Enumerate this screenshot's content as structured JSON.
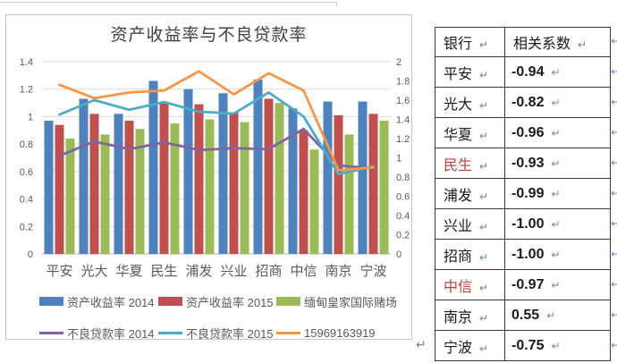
{
  "chart_data": {
    "type": "bar+line",
    "title": "资产收益率与不良贷款率",
    "categories": [
      "平安",
      "光大",
      "华夏",
      "民生",
      "浦发",
      "兴业",
      "招商",
      "中信",
      "南京",
      "宁波"
    ],
    "bar_series": [
      {
        "name": "资产收益率 2014",
        "color": "#4F81BD",
        "axis": "left",
        "values": [
          0.97,
          1.13,
          1.02,
          1.26,
          1.2,
          1.17,
          1.27,
          1.06,
          1.11,
          1.11
        ]
      },
      {
        "name": "资产收益率 2015",
        "color": "#C0504D",
        "axis": "left",
        "values": [
          0.94,
          1.02,
          0.97,
          1.1,
          1.09,
          1.03,
          1.13,
          0.9,
          1.01,
          1.02
        ]
      },
      {
        "name": "缅甸皇家国际赌场",
        "color": "#9BBB59",
        "axis": "left",
        "values": [
          0.84,
          0.87,
          0.91,
          0.95,
          0.98,
          0.96,
          1.1,
          0.76,
          0.87,
          0.97
        ]
      }
    ],
    "line_series": [
      {
        "name": "不良贷款率 2014",
        "color": "#8064A2",
        "axis": "right",
        "values": [
          1.02,
          1.17,
          1.09,
          1.16,
          1.08,
          1.1,
          1.09,
          1.3,
          0.92,
          0.89
        ]
      },
      {
        "name": "不良贷款率 2015",
        "color": "#4BACC6",
        "axis": "right",
        "values": [
          1.45,
          1.6,
          1.5,
          1.58,
          1.48,
          1.46,
          1.68,
          1.43,
          0.83,
          0.91
        ]
      },
      {
        "name": "15969163919",
        "color": "#F79646",
        "axis": "right",
        "values": [
          1.76,
          1.62,
          1.68,
          1.7,
          1.9,
          1.66,
          1.88,
          1.7,
          0.87,
          0.9
        ]
      }
    ],
    "left_axis": {
      "min": 0,
      "max": 1.4,
      "step": 0.2,
      "ticks": [
        "0",
        "0.2",
        "0.4",
        "0.6",
        "0.8",
        "1",
        "1.2",
        "1.4"
      ]
    },
    "right_axis": {
      "min": 0,
      "max": 2,
      "step": 0.2,
      "ticks": [
        "0",
        "0.2",
        "0.4",
        "0.6",
        "0.8",
        "1",
        "1.2",
        "1.4",
        "1.6",
        "1.8",
        "2"
      ]
    },
    "grid": true,
    "legend_position": "bottom",
    "gridline_color": "#d9d9d9",
    "axis_line_color": "#b0b0b0",
    "axis_text_color": "#595959"
  },
  "table": {
    "headers": [
      "银行",
      "相关系数"
    ],
    "highlight_color": "#b5423c",
    "rows": [
      {
        "bank": "平安",
        "value": "-0.94"
      },
      {
        "bank": "光大",
        "value": "-0.82"
      },
      {
        "bank": "华夏",
        "value": "-0.96"
      },
      {
        "bank": "民生",
        "value": "-0.93",
        "bank_color": "#b5423c"
      },
      {
        "bank": "浦发",
        "value": "-0.99"
      },
      {
        "bank": "兴业",
        "value": "-1.00"
      },
      {
        "bank": "招商",
        "value": "-1.00"
      },
      {
        "bank": "中信",
        "value": "-0.97",
        "bank_color": "#b5423c"
      },
      {
        "bank": "南京",
        "value": "0.55"
      },
      {
        "bank": "宁波",
        "value": "-0.75"
      }
    ]
  },
  "marks": {
    "return_mark": "↵",
    "color": "#6488b4"
  }
}
